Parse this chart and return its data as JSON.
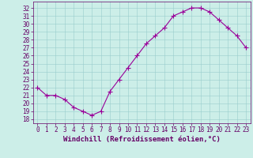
{
  "x": [
    0,
    1,
    2,
    3,
    4,
    5,
    6,
    7,
    8,
    9,
    10,
    11,
    12,
    13,
    14,
    15,
    16,
    17,
    18,
    19,
    20,
    21,
    22,
    23
  ],
  "y": [
    22.0,
    21.0,
    21.0,
    20.5,
    19.5,
    19.0,
    18.5,
    19.0,
    21.5,
    23.0,
    24.5,
    26.0,
    27.5,
    28.5,
    29.5,
    31.0,
    31.5,
    32.0,
    32.0,
    31.5,
    30.5,
    29.5,
    28.5,
    27.0
  ],
  "line_color": "#990099",
  "marker": "+",
  "marker_size": 4,
  "bg_color": "#cceee8",
  "grid_color": "#99cccc",
  "xlabel": "Windchill (Refroidissement éolien,°C)",
  "ylim": [
    17.5,
    32.8
  ],
  "xlim": [
    -0.5,
    23.5
  ],
  "yticks": [
    18,
    19,
    20,
    21,
    22,
    23,
    24,
    25,
    26,
    27,
    28,
    29,
    30,
    31,
    32
  ],
  "xticks": [
    0,
    1,
    2,
    3,
    4,
    5,
    6,
    7,
    8,
    9,
    10,
    11,
    12,
    13,
    14,
    15,
    16,
    17,
    18,
    19,
    20,
    21,
    22,
    23
  ],
  "tick_color": "#660066",
  "tick_fontsize": 5.5,
  "xlabel_fontsize": 6.5,
  "axis_label_color": "#660066",
  "spine_color": "#660066"
}
